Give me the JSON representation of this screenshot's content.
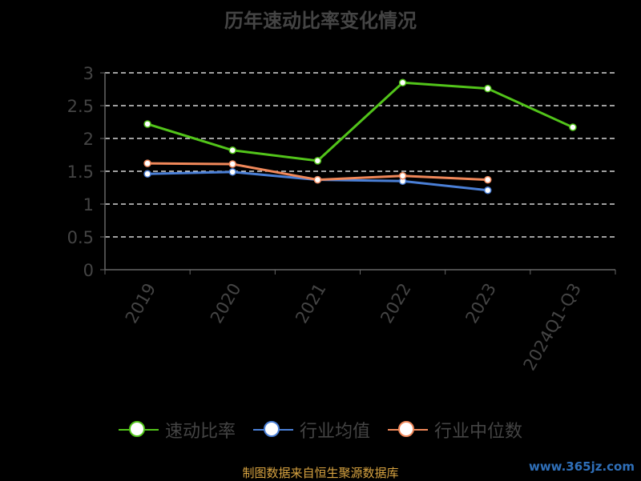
{
  "title": "历年速动比率变化情况",
  "source": "制图数据来自恒生聚源数据库",
  "watermark": "www.365jz.com",
  "chart_data": {
    "type": "line",
    "categories": [
      "2019",
      "2020",
      "2021",
      "2022",
      "2023",
      "2024Q1-Q3"
    ],
    "ylim": [
      0,
      3
    ],
    "yticks": [
      "0",
      "0.5",
      "1",
      "1.5",
      "2",
      "2.5",
      "3"
    ],
    "grid": true,
    "legend_position": "bottom",
    "series": [
      {
        "name": "速动比率",
        "color": "#52c41a",
        "values": [
          2.22,
          1.82,
          1.66,
          2.85,
          2.76,
          2.17
        ]
      },
      {
        "name": "行业均值",
        "color": "#4a7fd6",
        "values": [
          1.46,
          1.49,
          1.37,
          1.35,
          1.21,
          null
        ]
      },
      {
        "name": "行业中位数",
        "color": "#f0885a",
        "values": [
          1.62,
          1.61,
          1.37,
          1.43,
          1.37,
          null
        ]
      }
    ]
  }
}
